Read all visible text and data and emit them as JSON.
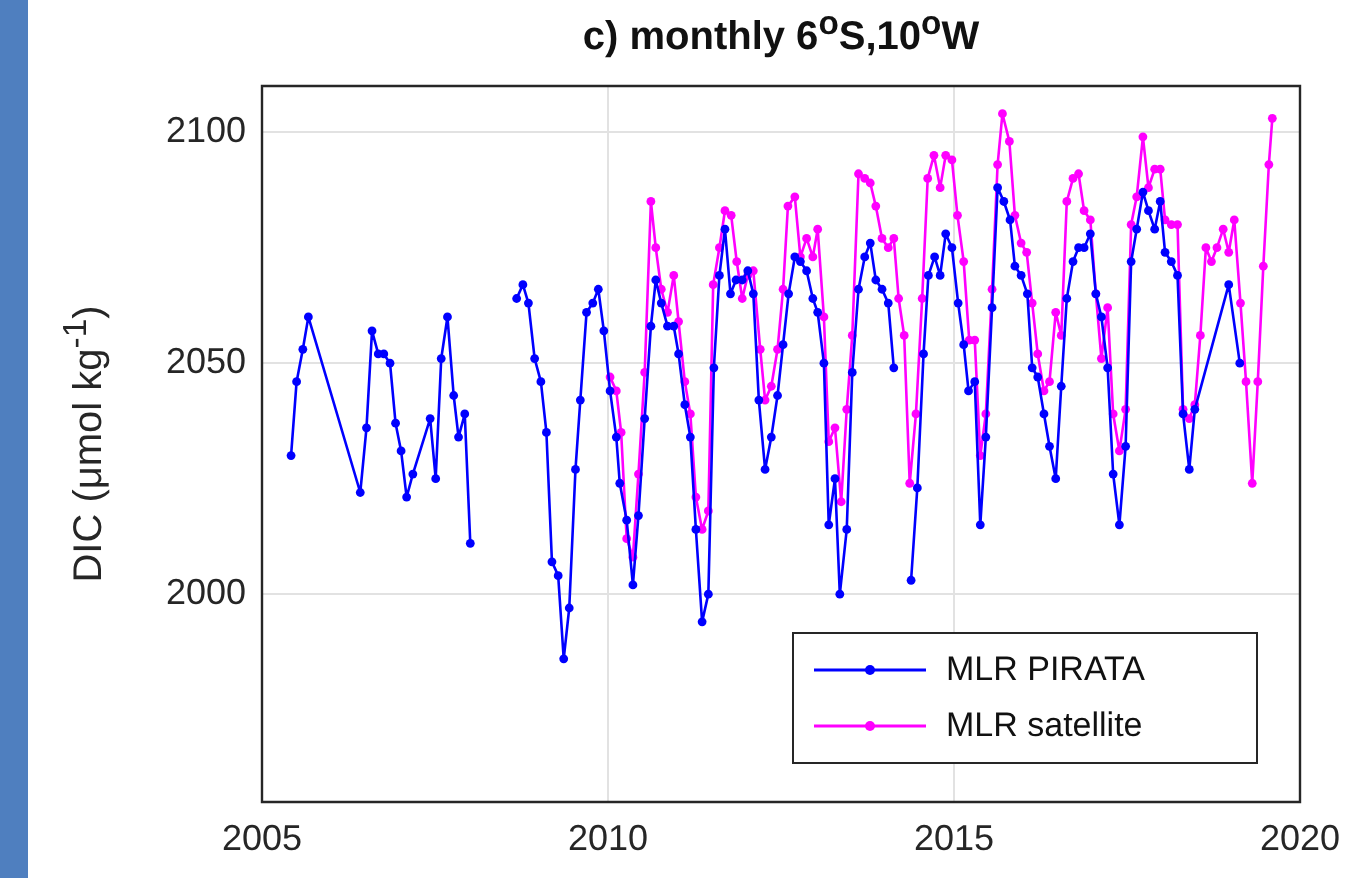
{
  "chart_data": {
    "type": "line",
    "title": "c) monthly 6$^{o}$S,10$^{o}$W",
    "ylabel": "DIC (μmol kg$^{-1}$)",
    "xlim": [
      2005,
      2020
    ],
    "xticks": [
      2005,
      2010,
      2015,
      2020
    ],
    "ylim": [
      1955,
      2110
    ],
    "yticks": [
      2000,
      2050,
      2100
    ],
    "grid": true,
    "legend": "bottom right",
    "marker": "circle",
    "line_style": "solid",
    "series": [
      {
        "name": "MLR PIRATA",
        "color": "#0000ff",
        "x": [
          2005.42,
          2005.5,
          2005.59,
          2005.67,
          2006.42,
          2006.51,
          2006.59,
          2006.68,
          2006.76,
          2006.85,
          2006.93,
          2007.01,
          2007.09,
          2007.18,
          2007.43,
          2007.51,
          2007.59,
          2007.68,
          2007.77,
          2007.84,
          2007.93,
          2008.01,
          2008.35,
          2008.68,
          2008.77,
          2008.85,
          2008.94,
          2009.03,
          2009.11,
          2009.19,
          2009.28,
          2009.36,
          2009.44,
          2009.53,
          2009.6,
          2009.69,
          2009.78,
          2009.86,
          2009.94,
          2010.03,
          2010.12,
          2010.17,
          2010.27,
          2010.36,
          2010.44,
          2010.53,
          2010.62,
          2010.69,
          2010.77,
          2010.86,
          2010.95,
          2011.02,
          2011.11,
          2011.19,
          2011.27,
          2011.36,
          2011.45,
          2011.53,
          2011.61,
          2011.69,
          2011.77,
          2011.85,
          2011.94,
          2012.02,
          2012.1,
          2012.18,
          2012.27,
          2012.36,
          2012.45,
          2012.53,
          2012.61,
          2012.7,
          2012.78,
          2012.87,
          2012.96,
          2013.03,
          2013.12,
          2013.19,
          2013.28,
          2013.35,
          2013.45,
          2013.53,
          2013.62,
          2013.71,
          2013.79,
          2013.87,
          2013.96,
          2014.05,
          2014.13,
          2014.25,
          2014.38,
          2014.47,
          2014.56,
          2014.63,
          2014.72,
          2014.8,
          2014.88,
          2014.97,
          2015.06,
          2015.14,
          2015.21,
          2015.3,
          2015.38,
          2015.46,
          2015.55,
          2015.63,
          2015.72,
          2015.81,
          2015.88,
          2015.97,
          2016.06,
          2016.13,
          2016.21,
          2016.3,
          2016.38,
          2016.47,
          2016.55,
          2016.63,
          2016.72,
          2016.8,
          2016.88,
          2016.97,
          2017.05,
          2017.13,
          2017.22,
          2017.3,
          2017.39,
          2017.48,
          2017.56,
          2017.64,
          2017.73,
          2017.81,
          2017.9,
          2017.98,
          2018.05,
          2018.14,
          2018.23,
          2018.31,
          2018.4,
          2018.48,
          2018.97,
          2019.13
        ],
        "values": [
          2030,
          2046,
          2053,
          2060,
          2022,
          2036,
          2057,
          2052,
          2052,
          2050,
          2037,
          2031,
          2021,
          2026,
          2038,
          2025,
          2051,
          2060,
          2043,
          2034,
          2039,
          2011,
          null,
          2064,
          2067,
          2063,
          2051,
          2046,
          2035,
          2007,
          2004,
          1986,
          1997,
          2027,
          2042,
          2061,
          2063,
          2066,
          2057,
          2044,
          2034,
          2024,
          2016,
          2002,
          2017,
          2038,
          2058,
          2068,
          2063,
          2058,
          2058,
          2052,
          2041,
          2034,
          2014,
          1994,
          2000,
          2049,
          2069,
          2079,
          2065,
          2068,
          2068,
          2070,
          2065,
          2042,
          2027,
          2034,
          2043,
          2054,
          2065,
          2073,
          2072,
          2070,
          2064,
          2061,
          2050,
          2015,
          2025,
          2000,
          2014,
          2048,
          2066,
          2073,
          2076,
          2068,
          2066,
          2063,
          2049,
          null,
          2003,
          2023,
          2052,
          2069,
          2073,
          2069,
          2078,
          2075,
          2063,
          2054,
          2044,
          2046,
          2015,
          2034,
          2062,
          2088,
          2085,
          2081,
          2071,
          2069,
          2065,
          2049,
          2047,
          2039,
          2032,
          2025,
          2045,
          2064,
          2072,
          2075,
          2075,
          2078,
          2065,
          2060,
          2049,
          2026,
          2015,
          2032,
          2072,
          2079,
          2087,
          2083,
          2079,
          2085,
          2074,
          2072,
          2069,
          2039,
          2027,
          2040,
          2067,
          2050
        ]
      },
      {
        "name": "MLR satellite",
        "color": "#ff00ff",
        "x": [
          2010.03,
          2010.12,
          2010.19,
          2010.27,
          2010.36,
          2010.44,
          2010.53,
          2010.62,
          2010.69,
          2010.77,
          2010.86,
          2010.95,
          2011.02,
          2011.11,
          2011.19,
          2011.27,
          2011.36,
          2011.45,
          2011.52,
          2011.61,
          2011.69,
          2011.78,
          2011.86,
          2011.94,
          2012.02,
          2012.1,
          2012.2,
          2012.27,
          2012.36,
          2012.45,
          2012.53,
          2012.6,
          2012.7,
          2012.78,
          2012.87,
          2012.96,
          2013.03,
          2013.12,
          2013.19,
          2013.28,
          2013.37,
          2013.45,
          2013.53,
          2013.62,
          2013.71,
          2013.79,
          2013.87,
          2013.96,
          2014.05,
          2014.13,
          2014.2,
          2014.28,
          2014.36,
          2014.45,
          2014.54,
          2014.62,
          2014.71,
          2014.8,
          2014.88,
          2014.97,
          2015.05,
          2015.14,
          2015.22,
          2015.3,
          2015.38,
          2015.46,
          2015.55,
          2015.63,
          2015.7,
          2015.8,
          2015.88,
          2015.97,
          2016.05,
          2016.13,
          2016.21,
          2016.3,
          2016.38,
          2016.47,
          2016.55,
          2016.63,
          2016.72,
          2016.8,
          2016.88,
          2016.97,
          2017.05,
          2017.13,
          2017.22,
          2017.3,
          2017.39,
          2017.48,
          2017.56,
          2017.64,
          2017.73,
          2017.81,
          2017.9,
          2017.98,
          2018.05,
          2018.14,
          2018.23,
          2018.31,
          2018.4,
          2018.48,
          2018.56,
          2018.64,
          2018.72,
          2018.8,
          2018.89,
          2018.97,
          2019.05,
          2019.14,
          2019.22,
          2019.31,
          2019.39,
          2019.47,
          2019.55,
          2019.6
        ],
        "values": [
          2047,
          2044,
          2035,
          2012,
          2008,
          2026,
          2048,
          2085,
          2075,
          2066,
          2061,
          2069,
          2059,
          2046,
          2039,
          2021,
          2014,
          2018,
          2067,
          2075,
          2083,
          2082,
          2072,
          2064,
          2069,
          2070,
          2053,
          2042,
          2045,
          2053,
          2066,
          2084,
          2086,
          2073,
          2077,
          2073,
          2079,
          2060,
          2033,
          2036,
          2020,
          2040,
          2056,
          2091,
          2090,
          2089,
          2084,
          2077,
          2075,
          2077,
          2064,
          2056,
          2024,
          2039,
          2064,
          2090,
          2095,
          2088,
          2095,
          2094,
          2082,
          2072,
          2055,
          2055,
          2030,
          2039,
          2066,
          2093,
          2104,
          2098,
          2082,
          2076,
          2074,
          2063,
          2052,
          2044,
          2046,
          2061,
          2056,
          2085,
          2090,
          2091,
          2083,
          2081,
          2065,
          2051,
          2062,
          2039,
          2031,
          2040,
          2080,
          2086,
          2099,
          2088,
          2092,
          2092,
          2081,
          2080,
          2080,
          2040,
          2038,
          2041,
          2056,
          2075,
          2072,
          2075,
          2079,
          2074,
          2081,
          2063,
          2046,
          2024,
          2046,
          2071,
          2093,
          2103
        ]
      }
    ]
  }
}
